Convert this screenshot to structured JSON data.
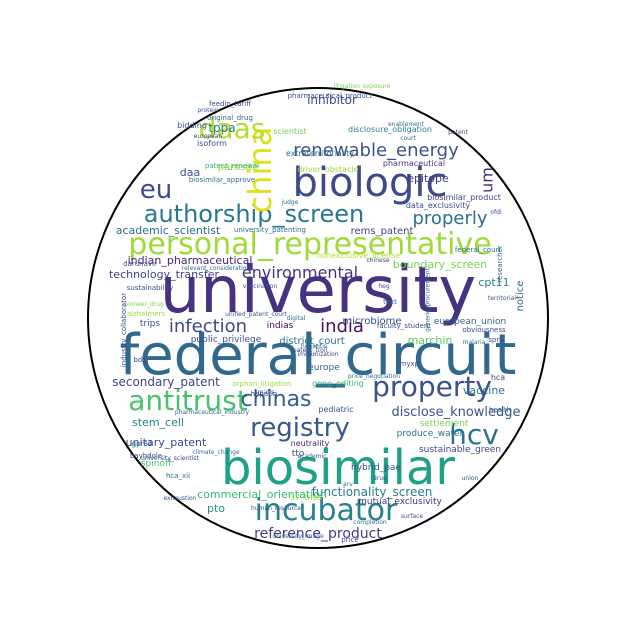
{
  "palette": [
    "#440154",
    "#46327e",
    "#365c8d",
    "#277f8e",
    "#1fa187",
    "#4ac16d",
    "#a0da39",
    "#fde725"
  ],
  "words": [
    {
      "t": "university",
      "c": "#46327e"
    },
    {
      "t": "federal_circuit",
      "c": "#31688e"
    },
    {
      "t": "biosimilar",
      "c": "#1fa187"
    },
    {
      "t": "biologic",
      "c": "#3e4a89"
    },
    {
      "t": "personal_representative",
      "c": "#a0da39"
    },
    {
      "t": "incubator",
      "c": "#26828e"
    },
    {
      "t": "property",
      "c": "#3b528b"
    },
    {
      "t": "antitrust",
      "c": "#4ac16d"
    },
    {
      "t": "registry",
      "c": "#375a8c"
    },
    {
      "t": "authorship_screen",
      "c": "#2a788e"
    },
    {
      "t": "china",
      "c": "#dde318"
    },
    {
      "t": "daas",
      "c": "#b5de2b"
    },
    {
      "t": "hcv",
      "c": "#2c728e"
    },
    {
      "t": "eu",
      "c": "#3e4c8a"
    },
    {
      "t": "chinas",
      "c": "#365d8d"
    },
    {
      "t": "renewable_energy",
      "c": "#3b528b"
    },
    {
      "t": "properly",
      "c": "#2d708e"
    },
    {
      "t": "environmental",
      "c": "#46337e"
    },
    {
      "t": "infection",
      "c": "#3e4989"
    },
    {
      "t": "india",
      "c": "#471063"
    },
    {
      "t": "um",
      "c": "#472c7a"
    },
    {
      "t": "reference_product",
      "c": "#443a83"
    },
    {
      "t": "disclose_knowledge",
      "c": "#3b528b"
    },
    {
      "t": "secondary_patent",
      "c": "#404688"
    },
    {
      "t": "functionality_screen",
      "c": "#287d8e"
    },
    {
      "t": "commercial_orientation",
      "c": "#35b779"
    },
    {
      "t": "indian_pharmaceutical",
      "c": "#482576"
    },
    {
      "t": "technology_transfer",
      "c": "#424086"
    },
    {
      "t": "unitary_patent",
      "c": "#3e4a89"
    },
    {
      "t": "boundary_screen",
      "c": "#7ad151"
    },
    {
      "t": "academic_scientist",
      "c": "#31688e"
    },
    {
      "t": "inhibitor",
      "c": "#414487"
    },
    {
      "t": "tppa",
      "c": "#2a788e"
    },
    {
      "t": "epitope",
      "c": "#433e85"
    },
    {
      "t": "daa",
      "c": "#3b528b"
    },
    {
      "t": "parasite",
      "c": "#a0da39"
    },
    {
      "t": "rems_patent",
      "c": "#3e4989"
    },
    {
      "t": "vaccine",
      "c": "#2c728e"
    },
    {
      "t": "cpt11",
      "c": "#287d8e"
    },
    {
      "t": "notice",
      "c": "#33638d"
    },
    {
      "t": "microbiome",
      "c": "#3b528b"
    },
    {
      "t": "marchin",
      "c": "#5ec962"
    },
    {
      "t": "district_court",
      "c": "#2d708e"
    },
    {
      "t": "stem_cell",
      "c": "#277f8e"
    },
    {
      "t": "pto",
      "c": "#21918c"
    },
    {
      "t": "spinoff",
      "c": "#4ac16d"
    },
    {
      "t": "tto",
      "c": "#3e4a89"
    },
    {
      "t": "europe",
      "c": "#31688e"
    },
    {
      "t": "settlement",
      "c": "#7ad151"
    },
    {
      "t": "produce_water",
      "c": "#2c728e"
    },
    {
      "t": "hybrid_pae",
      "c": "#3b528b"
    },
    {
      "t": "sustainable_green",
      "c": "#3e4989"
    },
    {
      "t": "mutual_exclusivity",
      "c": "#46327e"
    },
    {
      "t": "public_privilege",
      "c": "#3b528b"
    },
    {
      "t": "indias",
      "c": "#440154"
    },
    {
      "t": "trips",
      "c": "#3e4a89"
    },
    {
      "t": "european_union",
      "c": "#31688e"
    },
    {
      "t": "gene_editing",
      "c": "#35b779"
    },
    {
      "t": "neutrality",
      "c": "#482878"
    },
    {
      "t": "pediatric",
      "c": "#3b528b"
    },
    {
      "t": "nonexclusive_license",
      "c": "#b5de2b"
    },
    {
      "t": "driver_obstacle",
      "c": "#a0da39"
    },
    {
      "t": "extraterritoriality",
      "c": "#2d708e"
    },
    {
      "t": "disclosure_obligation",
      "c": "#26828e"
    },
    {
      "t": "scientist",
      "c": "#7ad151"
    },
    {
      "t": "pharmaceutical",
      "c": "#46327e"
    },
    {
      "t": "biosimilar_product",
      "c": "#433e85"
    },
    {
      "t": "data_exclusivity",
      "c": "#3e4989"
    },
    {
      "t": "isoform",
      "c": "#3b528b"
    },
    {
      "t": "bidding",
      "c": "#3e4a89"
    },
    {
      "t": "original_drug",
      "c": "#31688e"
    },
    {
      "t": "biosimilar_approve",
      "c": "#2c728e"
    },
    {
      "t": "patent_renewal",
      "c": "#35b779"
    },
    {
      "t": "feedin_tariff",
      "c": "#3e4a89"
    },
    {
      "t": "pharmaceutical_product",
      "c": "#3b528b"
    },
    {
      "t": "university_patenting",
      "c": "#2d708e"
    },
    {
      "t": "darunavir",
      "c": "#3e4989"
    },
    {
      "t": "relevant_consideration",
      "c": "#31688e"
    },
    {
      "t": "sustainability",
      "c": "#3b528b"
    },
    {
      "t": "pioneer_drug",
      "c": "#7ad151"
    },
    {
      "t": "alzheimers",
      "c": "#a0da39"
    },
    {
      "t": "industry_collaborator",
      "c": "#3e4a89"
    },
    {
      "t": "unified_patent_court",
      "c": "#3b528b"
    },
    {
      "t": "digital",
      "c": "#2c728e"
    },
    {
      "t": "faculty_student",
      "c": "#3e4989"
    },
    {
      "t": "generic_procurement",
      "c": "#31688e"
    },
    {
      "t": "researcher",
      "c": "#2d708e"
    },
    {
      "t": "federal_court",
      "c": "#2c728e"
    },
    {
      "t": "territorial",
      "c": "#3b528b"
    },
    {
      "t": "obviousness",
      "c": "#3e4a89"
    },
    {
      "t": "malaria",
      "c": "#2d708e"
    },
    {
      "t": "hca",
      "c": "#3e4989"
    },
    {
      "t": "health",
      "c": "#31688e"
    },
    {
      "t": "hca_xii",
      "c": "#2c728e"
    },
    {
      "t": "gpr84",
      "c": "#31688e"
    },
    {
      "t": "bayhdole",
      "c": "#3b528b"
    },
    {
      "t": "climate_change",
      "c": "#2c728e"
    },
    {
      "t": "university_scientist",
      "c": "#3e4989"
    },
    {
      "t": "exhaustion",
      "c": "#3b528b"
    },
    {
      "t": "human_resource",
      "c": "#3e4989"
    },
    {
      "t": "university_image",
      "c": "#31688e"
    },
    {
      "t": "price",
      "c": "#3e4a89"
    },
    {
      "t": "price_negotiation",
      "c": "#2d708e"
    },
    {
      "t": "orphan_litigation",
      "c": "#a0da39"
    },
    {
      "t": "heparin",
      "c": "#3e4989"
    },
    {
      "t": "pharmaceutical_industry",
      "c": "#31688e"
    },
    {
      "t": "academic",
      "c": "#3b528b"
    },
    {
      "t": "hepatitis",
      "c": "#2c728e"
    },
    {
      "t": "vaccination",
      "c": "#3e4989"
    },
    {
      "t": "patent_troll",
      "c": "#3e4a89"
    },
    {
      "t": "tmyxp",
      "c": "#3e4989"
    },
    {
      "t": "text",
      "c": "#31688e"
    },
    {
      "t": "union",
      "c": "#3b528b"
    },
    {
      "t": "ofdi",
      "c": "#3e4989"
    },
    {
      "t": "judge",
      "c": "#2c728e"
    },
    {
      "t": "court",
      "c": "#31688e"
    },
    {
      "t": "patent",
      "c": "#3e4a89"
    },
    {
      "t": "mabs",
      "c": "#3b528b"
    },
    {
      "t": "european",
      "c": "#3e4989"
    },
    {
      "t": "litigation_exposure",
      "c": "#7ad151"
    },
    {
      "t": "enablement",
      "c": "#2c728e"
    },
    {
      "t": "protein",
      "c": "#3b528b"
    },
    {
      "t": "surface",
      "c": "#3e4989"
    },
    {
      "t": "completion",
      "c": "#31688e"
    },
    {
      "t": "immunization",
      "c": "#3e4a89"
    },
    {
      "t": "sprp",
      "c": "#3b528b"
    },
    {
      "t": "37_trips",
      "c": "#a0da39"
    },
    {
      "t": "chinese",
      "c": "#3e4989"
    },
    {
      "t": "drug",
      "c": "#3b528b"
    },
    {
      "t": "arv",
      "c": "#2c728e"
    },
    {
      "t": "bd1",
      "c": "#3e4989"
    },
    {
      "t": "heg",
      "c": "#3e4a89"
    }
  ]
}
